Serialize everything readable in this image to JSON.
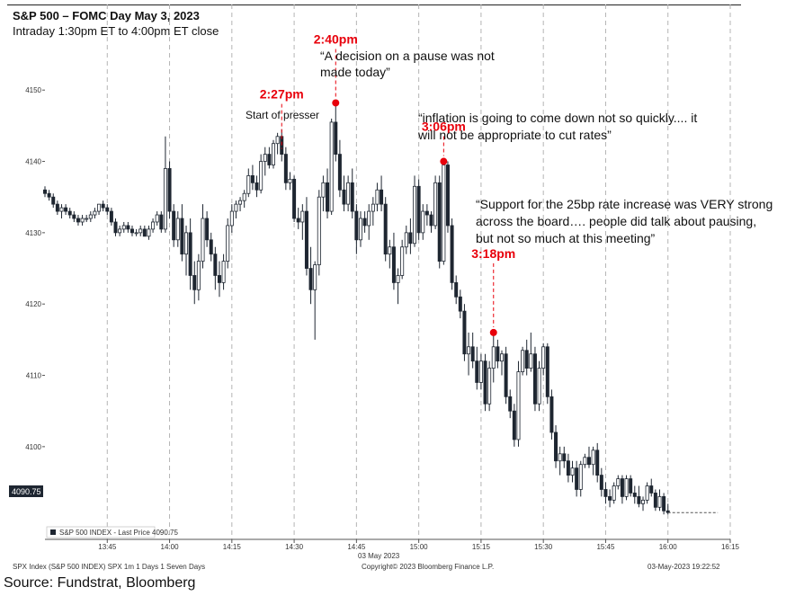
{
  "header": {
    "title": "S&P 500 – FOMC Day May 3, 2023",
    "subtitle": "Intraday 1:30pm ET to 4:00pm ET close"
  },
  "source": "Source: Fundstrat, Bloomberg",
  "footer": {
    "left": "SPX Index (S&P 500 INDEX) SPX 1m 1 Days 1 Seven Days",
    "center": "Copyright© 2023 Bloomberg Finance L.P.",
    "right": "03-May-2023 19:22:52"
  },
  "legend": {
    "label": "S&P 500 INDEX - Last Price 4090.75"
  },
  "last_price_tag": "4090.75",
  "date_label": "03 May 2023",
  "quotes": {
    "q1_line1": "“A decision on a pause was not",
    "q1_line2": "made today”",
    "q2_line1": "“inflation is going to come down not so quickly.... it",
    "q2_line2": "will not be appropriate to cut rates”",
    "q3_line1": "“Support for the 25bp rate increase was VERY strong",
    "q3_line2": "across the board…. people did talk about pausing,",
    "q3_line3": "but not so much at this meeting”",
    "presser": "Start of presser"
  },
  "colors": {
    "candle": "#1e2631",
    "annotation": "#e8000b",
    "grid": "#b4b4b4"
  },
  "chart_data": {
    "type": "candlestick",
    "title": "S&P 500 – FOMC Day May 3, 2023",
    "subtitle": "Intraday 1:30pm ET to 4:00pm ET close",
    "xlabel": "",
    "ylabel": "",
    "x_ticks": [
      "13:45",
      "14:00",
      "14:15",
      "14:30",
      "14:45",
      "15:00",
      "15:15",
      "15:30",
      "15:45",
      "16:00",
      "16:15"
    ],
    "y_ticks": [
      4100,
      4110,
      4120,
      4130,
      4140,
      4150
    ],
    "ylim": [
      4087,
      4162
    ],
    "x_range_minutes": [
      810,
      975
    ],
    "grid": "vertical dashed",
    "series_name": "S&P 500 INDEX - Last Price",
    "last_price": 4090.75,
    "annotations": [
      {
        "label": "2:27pm",
        "minute": 867,
        "price": 4141
      },
      {
        "label": "2:40pm",
        "minute": 880,
        "price": 4148.2
      },
      {
        "label": "3:06pm",
        "minute": 906,
        "price": 4140
      },
      {
        "label": "3:18pm",
        "minute": 918,
        "price": 4116
      }
    ],
    "candles": [
      [
        810,
        4136,
        4136.5,
        4135,
        4135.5
      ],
      [
        811,
        4135.5,
        4136,
        4134.5,
        4135
      ],
      [
        812,
        4135,
        4135.5,
        4133.5,
        4134
      ],
      [
        813,
        4134,
        4134.5,
        4132.5,
        4133
      ],
      [
        814,
        4133,
        4134,
        4132,
        4133.5
      ],
      [
        815,
        4133.5,
        4134,
        4132.5,
        4133
      ],
      [
        816,
        4133,
        4133.5,
        4132,
        4132.5
      ],
      [
        817,
        4132.5,
        4133,
        4131.5,
        4132
      ],
      [
        818,
        4132,
        4132.5,
        4131,
        4131.5
      ],
      [
        819,
        4131.5,
        4132.5,
        4131,
        4132
      ],
      [
        820,
        4132,
        4132.5,
        4131.5,
        4132
      ],
      [
        821,
        4132,
        4133,
        4131.5,
        4132.5
      ],
      [
        822,
        4132.5,
        4133.5,
        4132,
        4133
      ],
      [
        823,
        4133,
        4134,
        4132.5,
        4134
      ],
      [
        824,
        4134,
        4134.5,
        4133,
        4133.5
      ],
      [
        825,
        4133.5,
        4134,
        4132.5,
        4133
      ],
      [
        826,
        4133,
        4133.5,
        4131,
        4131.5
      ],
      [
        827,
        4131.5,
        4132,
        4129.5,
        4130
      ],
      [
        828,
        4130,
        4131,
        4129.5,
        4130.5
      ],
      [
        829,
        4130.5,
        4131.5,
        4130,
        4131
      ],
      [
        830,
        4131,
        4131.5,
        4130,
        4130.5
      ],
      [
        831,
        4130.5,
        4131,
        4129.5,
        4130
      ],
      [
        832,
        4130,
        4130.5,
        4129.5,
        4130
      ],
      [
        833,
        4130,
        4131,
        4129.5,
        4130.5
      ],
      [
        834,
        4130.5,
        4131,
        4129.5,
        4129.5
      ],
      [
        835,
        4129.5,
        4131,
        4129,
        4130.5
      ],
      [
        836,
        4130.5,
        4132,
        4130,
        4131.5
      ],
      [
        837,
        4131.5,
        4133,
        4131,
        4132.5
      ],
      [
        838,
        4132.5,
        4133,
        4130,
        4130.5
      ],
      [
        839,
        4130.5,
        4143.5,
        4130,
        4139
      ],
      [
        840,
        4139,
        4140,
        4132,
        4133
      ],
      [
        841,
        4133,
        4134,
        4128,
        4129
      ],
      [
        842,
        4129,
        4133,
        4128,
        4132
      ],
      [
        843,
        4132,
        4134,
        4126,
        4127
      ],
      [
        844,
        4127,
        4131,
        4124,
        4130
      ],
      [
        845,
        4130,
        4132,
        4122,
        4124
      ],
      [
        846,
        4124,
        4126,
        4120,
        4122
      ],
      [
        847,
        4122,
        4127,
        4120.5,
        4126
      ],
      [
        848,
        4126,
        4134,
        4125,
        4132
      ],
      [
        849,
        4132,
        4133,
        4128,
        4129
      ],
      [
        850,
        4129,
        4130,
        4126,
        4127
      ],
      [
        851,
        4127,
        4128,
        4122,
        4124
      ],
      [
        852,
        4124,
        4126,
        4121,
        4123
      ],
      [
        853,
        4123,
        4127,
        4122,
        4126
      ],
      [
        854,
        4126,
        4132,
        4125,
        4131
      ],
      [
        855,
        4131,
        4134,
        4130,
        4133
      ],
      [
        856,
        4133,
        4134.5,
        4132,
        4134
      ],
      [
        857,
        4134,
        4135,
        4133,
        4134.5
      ],
      [
        858,
        4134.5,
        4136,
        4133.5,
        4135.5
      ],
      [
        859,
        4135.5,
        4139,
        4135,
        4138
      ],
      [
        860,
        4138,
        4139.5,
        4136,
        4137
      ],
      [
        861,
        4137,
        4138,
        4135,
        4136
      ],
      [
        862,
        4136,
        4141,
        4135.5,
        4140
      ],
      [
        863,
        4140,
        4142,
        4138,
        4141
      ],
      [
        864,
        4141,
        4142,
        4139,
        4139.5
      ],
      [
        865,
        4139.5,
        4143,
        4139,
        4142.5
      ],
      [
        866,
        4142.5,
        4144,
        4141,
        4143.5
      ],
      [
        867,
        4143.5,
        4144.5,
        4140,
        4141
      ],
      [
        868,
        4141,
        4142,
        4136,
        4137
      ],
      [
        869,
        4137,
        4138.5,
        4136,
        4137.5
      ],
      [
        870,
        4137.5,
        4138,
        4131.5,
        4132
      ],
      [
        871,
        4132,
        4133.5,
        4130.5,
        4131.5
      ],
      [
        872,
        4131.5,
        4134,
        4129,
        4133
      ],
      [
        873,
        4133,
        4135,
        4124,
        4125
      ],
      [
        874,
        4125,
        4128,
        4120,
        4122
      ],
      [
        875,
        4122,
        4126,
        4115,
        4125.5
      ],
      [
        876,
        4125.5,
        4136,
        4124,
        4135
      ],
      [
        877,
        4135,
        4138,
        4133,
        4137
      ],
      [
        878,
        4137,
        4139,
        4132,
        4133
      ],
      [
        879,
        4133,
        4146,
        4132.5,
        4145.5
      ],
      [
        880,
        4145.5,
        4148.2,
        4140,
        4141
      ],
      [
        881,
        4141,
        4143,
        4135,
        4136
      ],
      [
        882,
        4136,
        4138,
        4133,
        4134
      ],
      [
        883,
        4134,
        4138,
        4133,
        4137
      ],
      [
        884,
        4137,
        4139,
        4132,
        4133
      ],
      [
        885,
        4133,
        4134,
        4127,
        4129
      ],
      [
        886,
        4129,
        4133,
        4128,
        4132
      ],
      [
        887,
        4132,
        4133,
        4130,
        4131
      ],
      [
        888,
        4131,
        4134,
        4129,
        4133
      ],
      [
        889,
        4133,
        4135,
        4131,
        4134
      ],
      [
        890,
        4134,
        4137,
        4133,
        4136
      ],
      [
        891,
        4136,
        4138,
        4133,
        4134
      ],
      [
        892,
        4134,
        4135,
        4126,
        4127
      ],
      [
        893,
        4127,
        4129,
        4125,
        4128
      ],
      [
        894,
        4128,
        4130,
        4122,
        4123
      ],
      [
        895,
        4123,
        4125,
        4120,
        4124
      ],
      [
        896,
        4124,
        4129,
        4123.5,
        4128
      ],
      [
        897,
        4128,
        4131,
        4127,
        4130
      ],
      [
        898,
        4130,
        4132,
        4127,
        4128.5
      ],
      [
        899,
        4128.5,
        4138,
        4128,
        4136.5
      ],
      [
        900,
        4136.5,
        4137.5,
        4129,
        4130
      ],
      [
        901,
        4130,
        4134,
        4129,
        4133
      ],
      [
        902,
        4133,
        4134,
        4131,
        4132.5
      ],
      [
        903,
        4132.5,
        4133,
        4130,
        4131
      ],
      [
        904,
        4131,
        4138,
        4130.5,
        4137
      ],
      [
        905,
        4137,
        4138,
        4125,
        4126
      ],
      [
        906,
        4126,
        4140,
        4125.5,
        4139.5
      ],
      [
        907,
        4139.5,
        4140,
        4130,
        4131
      ],
      [
        908,
        4131,
        4132,
        4122,
        4123
      ],
      [
        909,
        4123,
        4124,
        4120,
        4121
      ],
      [
        910,
        4121,
        4122,
        4118,
        4119
      ],
      [
        911,
        4119,
        4120,
        4112,
        4113
      ],
      [
        912,
        4113,
        4116,
        4110,
        4114
      ],
      [
        913,
        4114,
        4116,
        4111,
        4112
      ],
      [
        914,
        4112,
        4114,
        4108,
        4109
      ],
      [
        915,
        4109,
        4113,
        4108,
        4112
      ],
      [
        916,
        4112,
        4113,
        4105,
        4106
      ],
      [
        917,
        4106,
        4112,
        4105,
        4111
      ],
      [
        918,
        4111,
        4116,
        4109,
        4114
      ],
      [
        919,
        4114,
        4115,
        4111,
        4112
      ],
      [
        920,
        4112,
        4113.5,
        4110,
        4113
      ],
      [
        921,
        4113,
        4114,
        4106,
        4107
      ],
      [
        922,
        4107,
        4108,
        4104,
        4105
      ],
      [
        923,
        4105,
        4106,
        4100,
        4101
      ],
      [
        924,
        4101,
        4112,
        4100,
        4110.5
      ],
      [
        925,
        4110.5,
        4114,
        4110,
        4113.5
      ],
      [
        926,
        4113.5,
        4115,
        4110,
        4111
      ],
      [
        927,
        4111,
        4116,
        4110.5,
        4113
      ],
      [
        928,
        4113,
        4114,
        4105,
        4106
      ],
      [
        929,
        4106,
        4112,
        4105,
        4111
      ],
      [
        930,
        4111,
        4114.5,
        4110,
        4114
      ],
      [
        931,
        4114,
        4114.5,
        4106,
        4107
      ],
      [
        932,
        4107,
        4108,
        4101,
        4102
      ],
      [
        933,
        4102,
        4103,
        4097,
        4098
      ],
      [
        934,
        4098,
        4100,
        4096,
        4099
      ],
      [
        935,
        4099,
        4100,
        4097,
        4098
      ],
      [
        936,
        4098,
        4099,
        4095,
        4096
      ],
      [
        937,
        4096,
        4098,
        4095,
        4097
      ],
      [
        938,
        4097,
        4098,
        4093,
        4094
      ],
      [
        939,
        4094,
        4098,
        4093,
        4097.5
      ],
      [
        940,
        4097.5,
        4099,
        4097,
        4098.5
      ],
      [
        941,
        4098.5,
        4100,
        4097,
        4097.5
      ],
      [
        942,
        4097.5,
        4100,
        4096,
        4099.5
      ],
      [
        943,
        4099.5,
        4100.5,
        4095,
        4096
      ],
      [
        944,
        4096,
        4097,
        4093,
        4094
      ],
      [
        945,
        4094,
        4095,
        4092,
        4093
      ],
      [
        946,
        4093,
        4094,
        4091.5,
        4092.5
      ],
      [
        947,
        4092.5,
        4095,
        4092,
        4094.5
      ],
      [
        948,
        4094.5,
        4096,
        4094,
        4095.5
      ],
      [
        949,
        4095.5,
        4096,
        4092,
        4093
      ],
      [
        950,
        4093,
        4096,
        4092.5,
        4095.5
      ],
      [
        951,
        4095.5,
        4096,
        4093,
        4093.5
      ],
      [
        952,
        4093.5,
        4094.5,
        4092,
        4093
      ],
      [
        953,
        4093,
        4094.5,
        4091.5,
        4092
      ],
      [
        954,
        4092,
        4093,
        4091,
        4092.5
      ],
      [
        955,
        4092.5,
        4095,
        4092,
        4094.5
      ],
      [
        956,
        4094.5,
        4095.5,
        4093,
        4093.5
      ],
      [
        957,
        4093.5,
        4094,
        4091,
        4091.5
      ],
      [
        958,
        4091.5,
        4094,
        4091,
        4093
      ],
      [
        959,
        4093,
        4093.5,
        4090.5,
        4091
      ],
      [
        960,
        4091,
        4092,
        4090.5,
        4090.75
      ]
    ]
  }
}
